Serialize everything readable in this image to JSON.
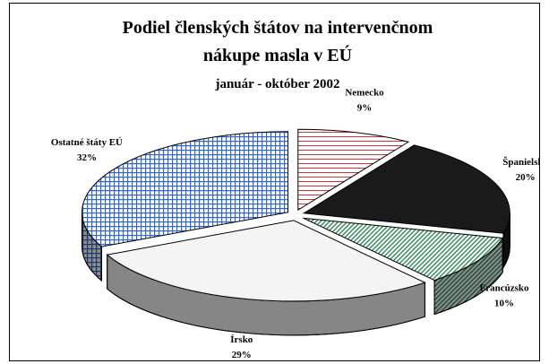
{
  "chart_data": {
    "type": "pie",
    "title": "Podiel členských štátov na intervenčnom nákupe masla v EÚ",
    "subtitle": "január - október 2002",
    "categories": [
      "Nemecko",
      "Španielsko",
      "Francúzsko",
      "Írsko",
      "Ostatné štáty EÚ"
    ],
    "values": [
      9,
      20,
      10,
      29,
      32
    ],
    "value_labels": [
      "9%",
      "20%",
      "10%",
      "29%",
      "32%"
    ],
    "colors": [
      "#cc3333",
      "#1a1a1a",
      "#2e8b57",
      "#f4f4f4",
      "#3366cc"
    ]
  }
}
